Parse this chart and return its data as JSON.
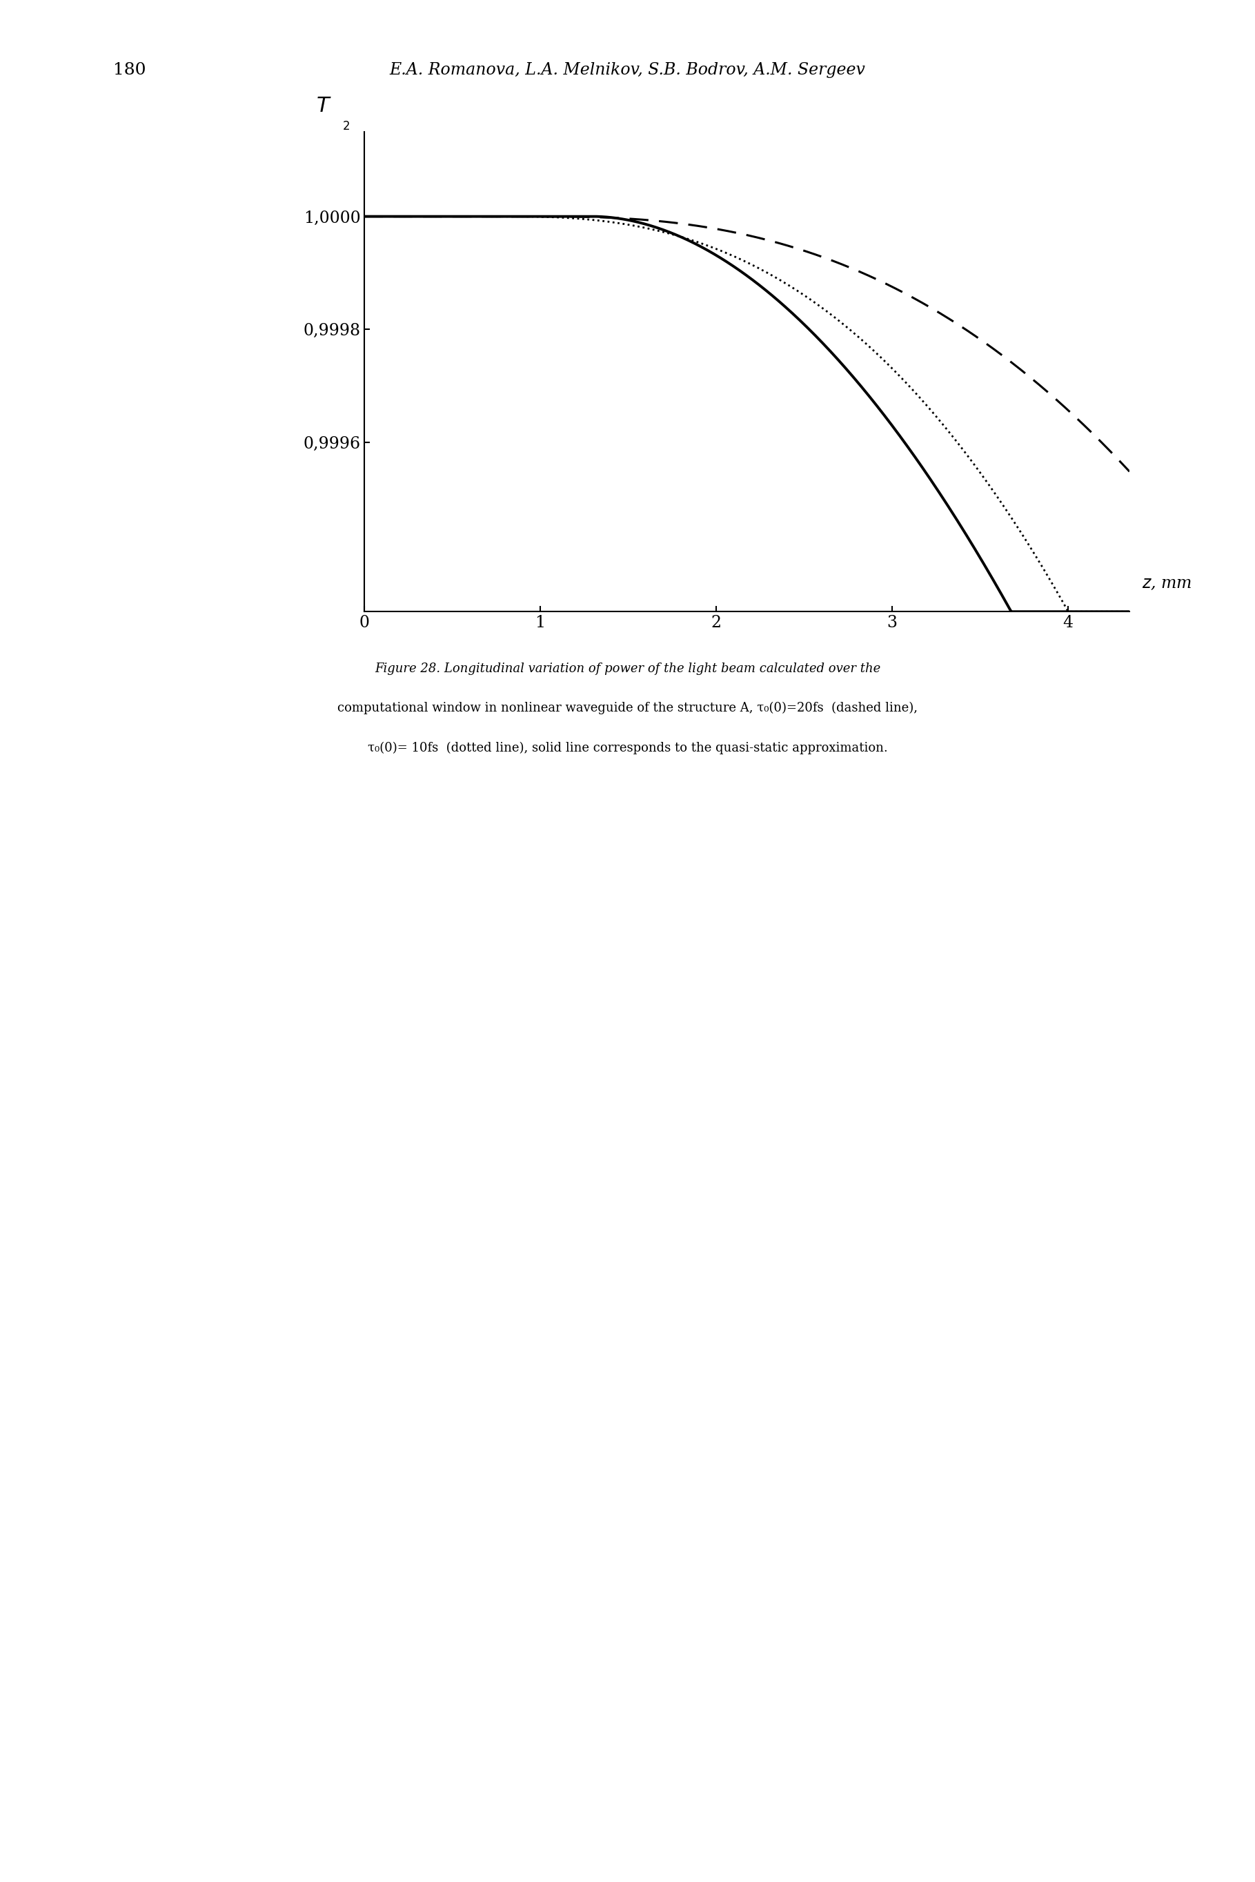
{
  "ylabel": "T_2",
  "xlabel": "z, mm",
  "xlim": [
    0,
    4.35
  ],
  "ylim": [
    0.9993,
    1.00015
  ],
  "yticks": [
    1.0,
    0.9998,
    0.9996
  ],
  "ytick_labels": [
    "1,0000",
    "0,9998",
    "0,9996"
  ],
  "xticks": [
    0,
    1,
    2,
    3,
    4
  ],
  "xtick_labels": [
    "0",
    "1",
    "2",
    "3",
    "4"
  ],
  "background_color": "#ffffff",
  "line_color": "#000000",
  "caption_line1": "Figure 28. Longitudinal variation of power of the light beam calculated over the",
  "caption_line2": "computational window in nonlinear waveguide of the structure A, τ₀(0)=20fs  (dashed line),",
  "caption_line3": "τ₀(0)= 10fs  (dotted line), solid line corresponds to the quasi-static approximation.",
  "page_number": "180",
  "page_header": "E.A. Romanova, L.A. Melnikov, S.B. Bodrov, A.M. Sergeev"
}
